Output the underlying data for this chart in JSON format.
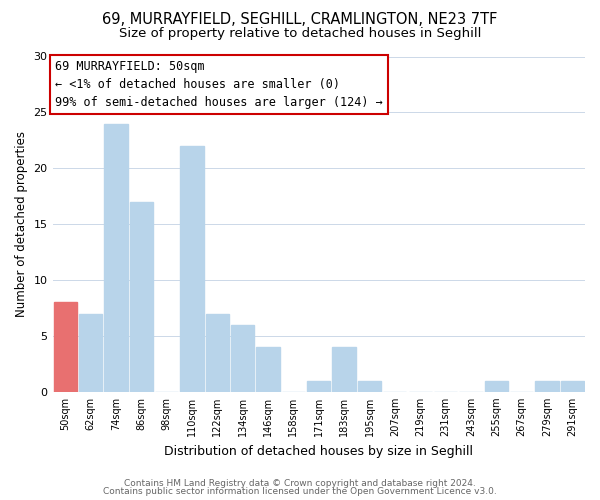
{
  "title_line1": "69, MURRAYFIELD, SEGHILL, CRAMLINGTON, NE23 7TF",
  "title_line2": "Size of property relative to detached houses in Seghill",
  "xlabel": "Distribution of detached houses by size in Seghill",
  "ylabel": "Number of detached properties",
  "bin_labels": [
    "50sqm",
    "62sqm",
    "74sqm",
    "86sqm",
    "98sqm",
    "110sqm",
    "122sqm",
    "134sqm",
    "146sqm",
    "158sqm",
    "171sqm",
    "183sqm",
    "195sqm",
    "207sqm",
    "219sqm",
    "231sqm",
    "243sqm",
    "255sqm",
    "267sqm",
    "279sqm",
    "291sqm"
  ],
  "bar_values": [
    8,
    7,
    24,
    17,
    0,
    22,
    7,
    6,
    4,
    0,
    1,
    4,
    1,
    0,
    0,
    0,
    0,
    1,
    0,
    1,
    1
  ],
  "bar_color": "#b8d4ea",
  "highlight_bar_index": 0,
  "highlight_bar_color": "#e87070",
  "annotation_title": "69 MURRAYFIELD: 50sqm",
  "annotation_line1": "← <1% of detached houses are smaller (0)",
  "annotation_line2": "99% of semi-detached houses are larger (124) →",
  "annotation_box_color": "#ffffff",
  "annotation_box_edge_color": "#cc0000",
  "ylim": [
    0,
    30
  ],
  "yticks": [
    0,
    5,
    10,
    15,
    20,
    25,
    30
  ],
  "footer_line1": "Contains HM Land Registry data © Crown copyright and database right 2024.",
  "footer_line2": "Contains public sector information licensed under the Open Government Licence v3.0.",
  "background_color": "#ffffff",
  "grid_color": "#ccd8e8",
  "title_fontsize": 10.5,
  "subtitle_fontsize": 9.5,
  "annotation_fontsize": 8.5
}
